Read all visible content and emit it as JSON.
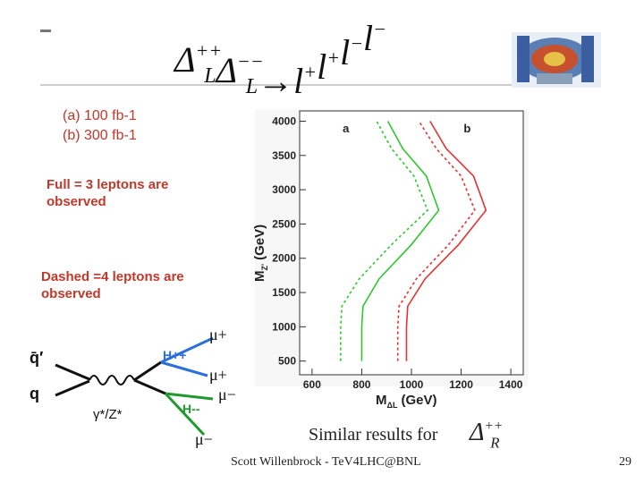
{
  "title": [
    {
      "base": "Δ",
      "sup": "++",
      "sub": "L"
    },
    {
      "base": "Δ",
      "sup": "−−",
      "sub": "L"
    },
    {
      "base": "→"
    },
    {
      "base": "l",
      "sup": "+"
    },
    {
      "base": "l",
      "sup": "+"
    },
    {
      "base": "l",
      "sup": "−"
    },
    {
      "base": "l",
      "sup": "−"
    }
  ],
  "notes": {
    "lumi_a": "(a) 100 fb-1",
    "lumi_b": "(b)  300 fb-1",
    "full": [
      "Full = 3 leptons are",
      "observed"
    ],
    "dashed": [
      "Dashed =4 leptons are",
      "observed"
    ]
  },
  "diagram": {
    "qbar": "q̄′",
    "q": "q",
    "boson": "γ*/Z*",
    "hpp": "H++",
    "hmm": "H--",
    "mu1": "μ+",
    "mu2": "μ+",
    "mu3": "μ−",
    "mu4": "μ−"
  },
  "footer": {
    "similar": "Similar results for",
    "delta": {
      "base": "Δ",
      "sup": "++",
      "sub": "R"
    },
    "credit": "Scott Willenbrock - TeV4LHC@BNL",
    "page": "29"
  },
  "chart_data": {
    "type": "line",
    "x_label": [
      "M",
      "ΔL",
      "(GeV)"
    ],
    "y_label": [
      "M",
      "Z'",
      "(GeV)"
    ],
    "xlim": [
      550,
      1450
    ],
    "ylim": [
      300,
      4150
    ],
    "xticks": [
      600,
      800,
      1000,
      1200,
      1400
    ],
    "yticks": [
      500,
      1000,
      1500,
      2000,
      2500,
      3000,
      3500,
      4000
    ],
    "series": [
      {
        "name": "a",
        "color": "#2ec82e",
        "lines": [
          {
            "style": "full",
            "x": [
              800,
              800,
              805,
              870,
              1000,
              1110,
              1060,
              965,
              905
            ],
            "y": [
              500,
              1000,
              1300,
              1700,
              2200,
              2700,
              3200,
              3600,
              4000
            ]
          },
          {
            "style": "dashed",
            "x": [
              715,
              715,
              720,
              790,
              920,
              1065,
              1010,
              920,
              860
            ],
            "y": [
              500,
              1000,
              1300,
              1700,
              2200,
              2700,
              3200,
              3600,
              4000
            ]
          }
        ]
      },
      {
        "name": "b",
        "color": "#e83030",
        "lines": [
          {
            "style": "full",
            "x": [
              980,
              980,
              985,
              1055,
              1190,
              1300,
              1250,
              1140,
              1075
            ],
            "y": [
              500,
              1000,
              1300,
              1700,
              2200,
              2700,
              3200,
              3600,
              4000
            ]
          },
          {
            "style": "dashed",
            "x": [
              945,
              945,
              950,
              1020,
              1150,
              1255,
              1200,
              1100,
              1030
            ],
            "y": [
              500,
              1000,
              1300,
              1700,
              2200,
              2700,
              3200,
              3600,
              4000
            ]
          }
        ]
      }
    ]
  }
}
